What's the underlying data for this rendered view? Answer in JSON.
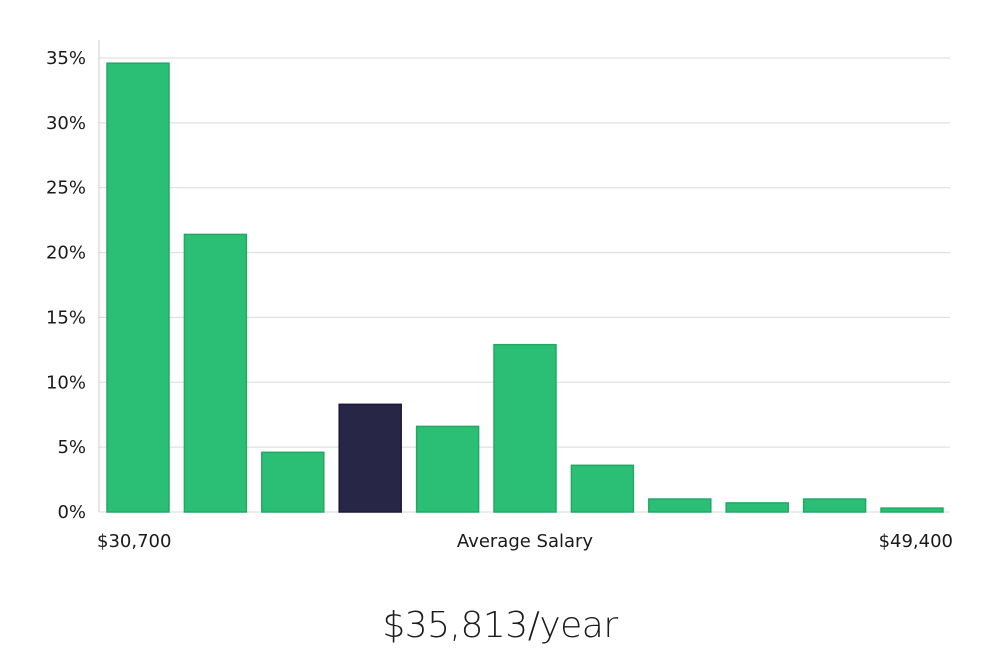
{
  "chart_data": {
    "type": "bar",
    "title": "",
    "xlabel": "Average Salary",
    "ylabel": "",
    "x_min_label": "$30,700",
    "x_max_label": "$49,400",
    "ylim": [
      0,
      35
    ],
    "yticks": [
      0,
      5,
      10,
      15,
      20,
      25,
      30,
      35
    ],
    "ytick_labels": [
      "0%",
      "5%",
      "10%",
      "15%",
      "20%",
      "25%",
      "30%",
      "35%"
    ],
    "grid": true,
    "values": [
      34.6,
      21.4,
      4.6,
      8.3,
      6.6,
      12.9,
      3.6,
      1.0,
      0.7,
      1.0,
      0.3
    ],
    "highlight_index": 3,
    "colors": {
      "bar": "#2bbf76",
      "bar_border": "#22a866",
      "highlight": "#282646",
      "highlight_border": "#1a1936",
      "grid": "#d9d9d9",
      "axis": "#cccccc"
    }
  },
  "headline": {
    "value": "$35,813/year"
  }
}
